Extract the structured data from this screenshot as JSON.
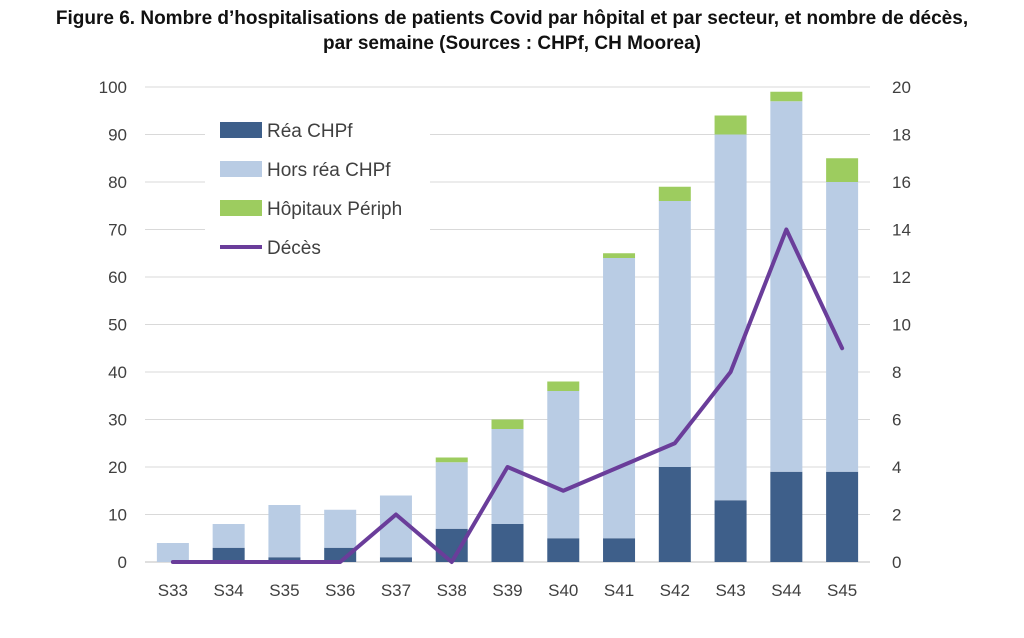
{
  "chart_data": {
    "type": "bar",
    "title_line1": "Figure 6. Nombre d’hospitalisations de patients Covid par hôpital et par secteur, et nombre de décès,",
    "title_line2": "par semaine (Sources : CHPf, CH Moorea)",
    "categories": [
      "S33",
      "S34",
      "S35",
      "S36",
      "S37",
      "S38",
      "S39",
      "S40",
      "S41",
      "S42",
      "S43",
      "S44",
      "S45"
    ],
    "stacked": true,
    "series": [
      {
        "name": "Réa CHPf",
        "color": "#3e5f8a",
        "axis": "left",
        "values": [
          0,
          3,
          1,
          3,
          1,
          7,
          8,
          5,
          5,
          20,
          13,
          19,
          19
        ]
      },
      {
        "name": "Hors réa CHPf",
        "color": "#b9cce4",
        "axis": "left",
        "values": [
          4,
          5,
          11,
          8,
          13,
          14,
          20,
          31,
          59,
          56,
          77,
          78,
          61
        ]
      },
      {
        "name": "Hôpitaux Périph",
        "color": "#9dcc5f",
        "axis": "left",
        "values": [
          0,
          0,
          0,
          0,
          0,
          1,
          2,
          2,
          1,
          3,
          4,
          2,
          5
        ]
      },
      {
        "name": "Décès",
        "color": "#6a3d9a",
        "axis": "right",
        "type": "line",
        "values": [
          0,
          0,
          0,
          0,
          2,
          0,
          4,
          3,
          4,
          5,
          8,
          14,
          9
        ]
      }
    ],
    "ylim": [
      0,
      100
    ],
    "yticks": [
      0,
      10,
      20,
      30,
      40,
      50,
      60,
      70,
      80,
      90,
      100
    ],
    "y2lim": [
      0,
      20
    ],
    "y2ticks": [
      0,
      2,
      4,
      6,
      8,
      10,
      12,
      14,
      16,
      18,
      20
    ],
    "grid": true,
    "legend": "top-left"
  }
}
